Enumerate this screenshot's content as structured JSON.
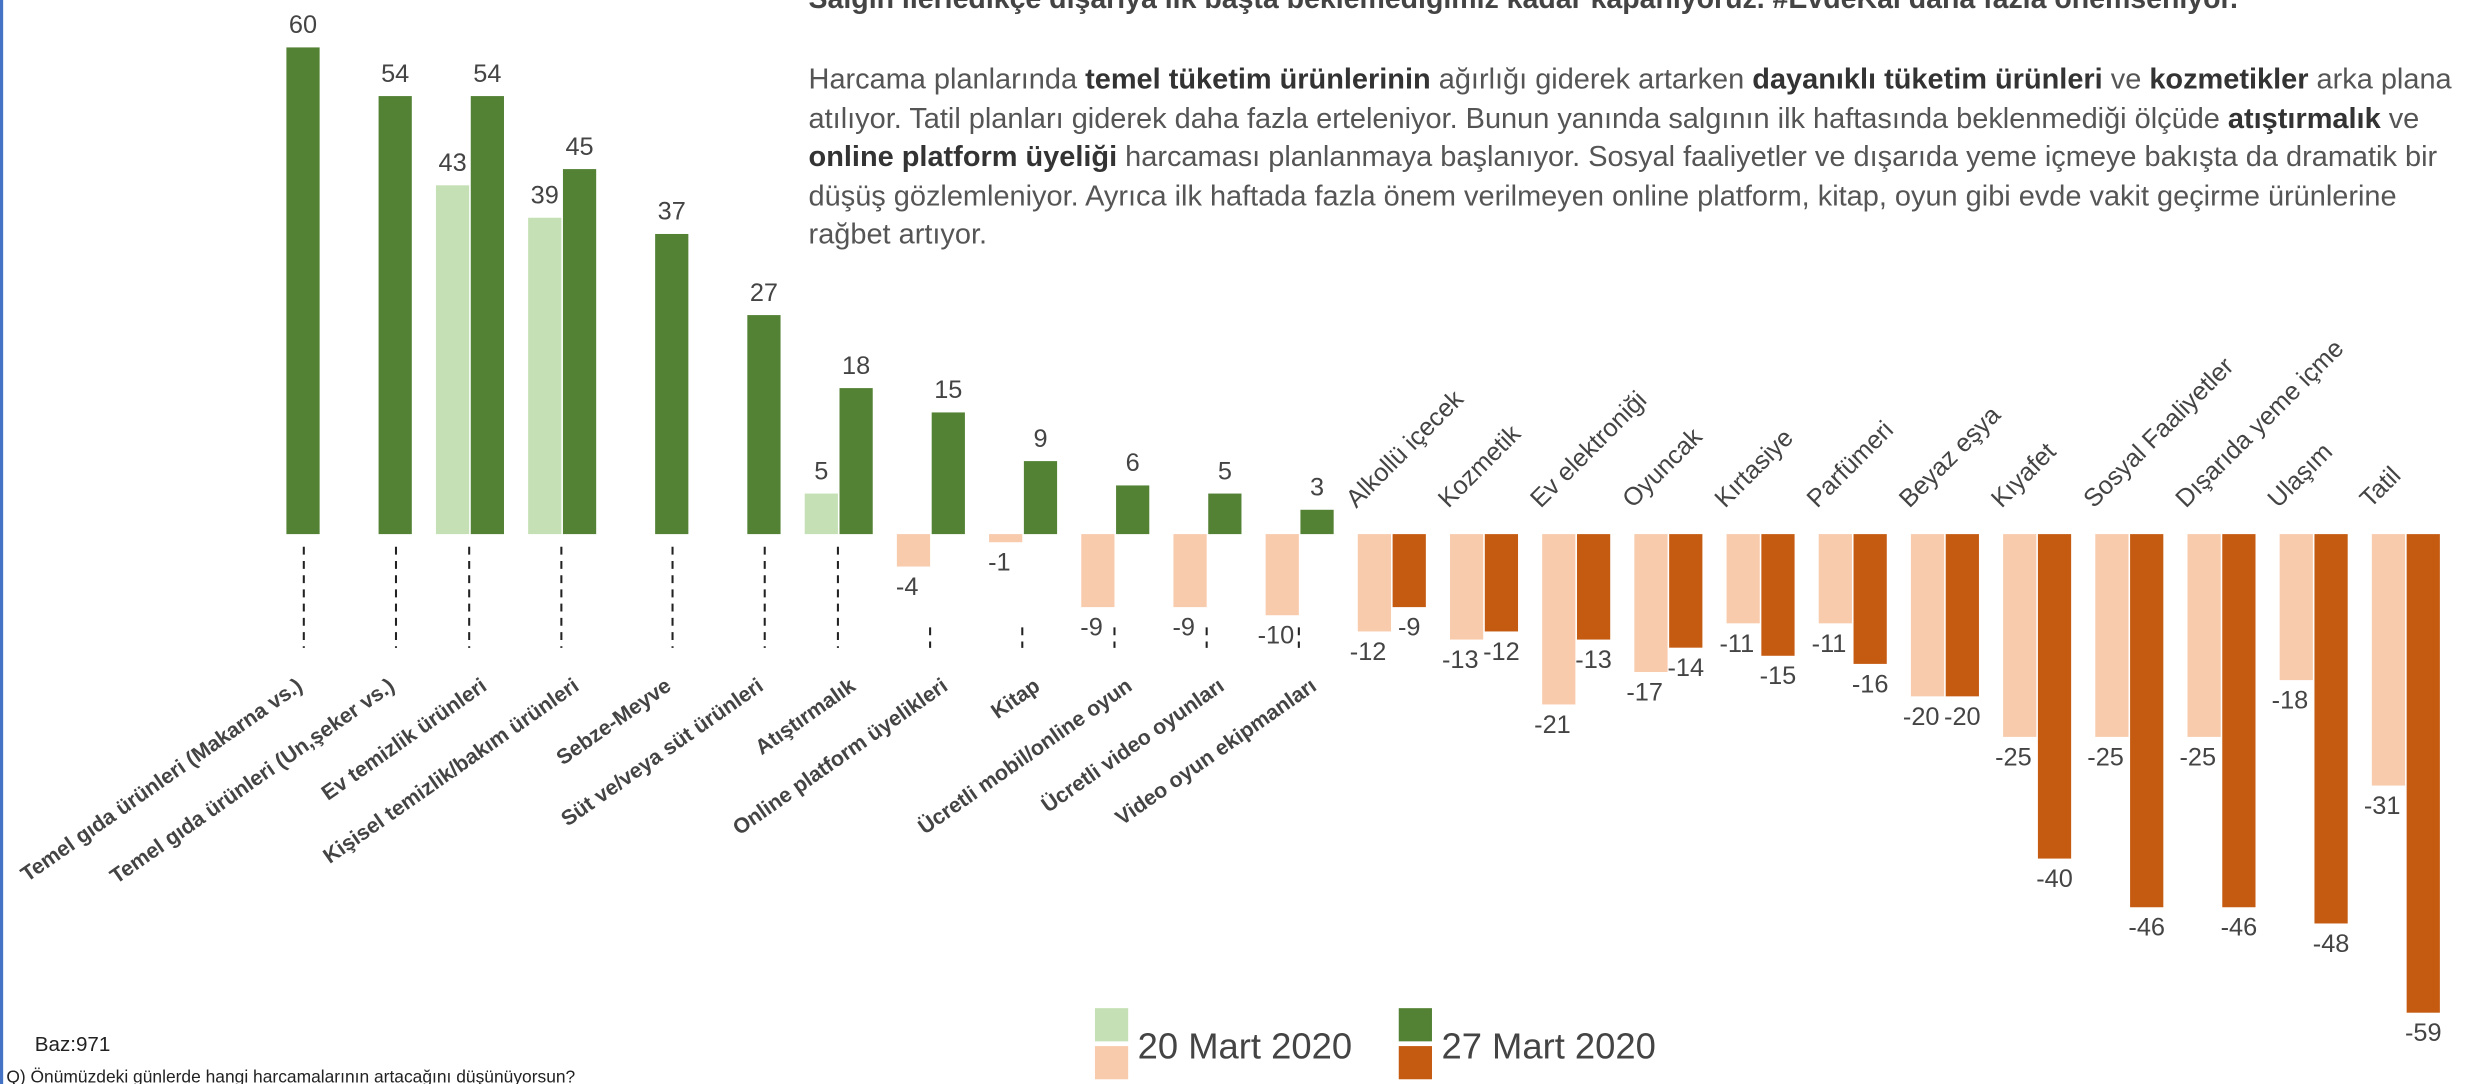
{
  "chart_data": {
    "type": "bar",
    "title": "Salgın ilerledikçe dışarıya ilk başta beklemediğimiz kadar kapanıyoruz. #EvdeKal daha fazla önemseniyor.",
    "description": [
      "Harcama planlarında ",
      "temel tüketim ürünlerinin",
      " ağırlığı giderek artarken ",
      "dayanıklı tüketim ürünleri",
      " ve ",
      "kozmetikler",
      " arka plana atılıyor. Tatil planları giderek daha fazla erteleniyor.  Bunun yanında salgının ilk haftasında beklenmediği ölçüde ",
      "atıştırmalık",
      " ve ",
      "online platform üyeliği",
      " harcaması planlanmaya başlanıyor. Sosyal faaliyetler ve dışarıda yeme içmeye bakışta da dramatik bir düşüş gözlemleniyor. Ayrıca ilk haftada fazla önem verilmeyen online platform, kitap, oyun gibi evde vakit geçirme ürünlerine rağbet artıyor."
    ],
    "categories": [
      "Temel gıda ürünleri (Makarna vs.)",
      "Temel gıda ürünleri (Un,şeker vs.)",
      "Ev temizlik ürünleri",
      "Kişisel temizlik/bakım ürünleri",
      "Sebze-Meyve",
      "Süt ve/veya süt ürünleri",
      "Atıştırmalık",
      "Online platform üyelikleri",
      "Kitap",
      "Ücretli mobil/online oyun",
      "Ücretli video oyunları",
      "Video oyun ekipmanları",
      "Alkollü içecek",
      "Kozmetik",
      "Ev elektroniği",
      "Oyuncak",
      "Kırtasiye",
      "Parfümeri",
      "Beyaz eşya",
      "Kıyafet",
      "Sosyal Faaliyetler",
      "Dışarıda yeme içme",
      "Ulaşım",
      "Tatil"
    ],
    "series": [
      {
        "name": "20 Mart 2020",
        "color": "#c5e0b4",
        "negative_color": "#f8cbad",
        "values": [
          null,
          null,
          43,
          39,
          null,
          null,
          5,
          -4,
          -1,
          -9,
          -9,
          -10,
          -12,
          -13,
          -21,
          -17,
          -11,
          -11,
          -20,
          -25,
          -25,
          -25,
          -18,
          -31
        ]
      },
      {
        "name": "27 Mart 2020",
        "color": "#548235",
        "negative_color": "#c55a11",
        "values": [
          60,
          54,
          54,
          45,
          37,
          27,
          18,
          15,
          9,
          6,
          5,
          3,
          -9,
          -12,
          -13,
          -14,
          -15,
          -16,
          -20,
          -40,
          -46,
          -46,
          -48,
          -59
        ]
      }
    ],
    "ylim": [
      -59,
      60
    ],
    "base_note": "Baz:971",
    "question": "Q) Önümüzdeki günlerde hangi harcamalarının artacağını düşünüyorsun?"
  }
}
